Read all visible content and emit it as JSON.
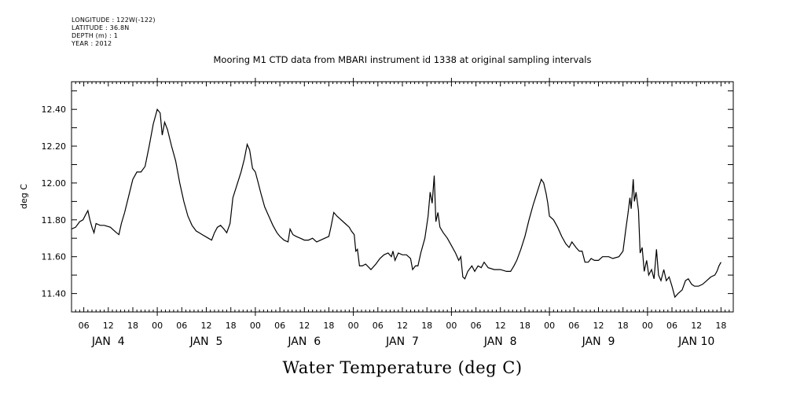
{
  "header_info": [
    "LONGITUDE : 122W(-122)",
    "LATITUDE : 36.8N",
    "DEPTH (m) : 1",
    "YEAR : 2012"
  ],
  "chart_data": {
    "type": "line",
    "title": "Mooring M1 CTD data from MBARI instrument id 1338 at original sampling intervals",
    "xlabel": "Water Temperature (deg C)",
    "ylabel": "deg C",
    "x_unit": "hours since JAN 4 00:00, 2012",
    "xlim": [
      3,
      165
    ],
    "ylim": [
      11.3,
      12.55
    ],
    "yticks": [
      11.4,
      11.6,
      11.8,
      12.0,
      12.2,
      12.4
    ],
    "ytick_labels": [
      "11.40",
      "11.60",
      "11.80",
      "12.00",
      "12.20",
      "12.40"
    ],
    "xticks_hours": [
      6,
      12,
      18,
      24,
      30,
      36,
      42,
      48,
      54,
      60,
      66,
      72,
      78,
      84,
      90,
      96,
      102,
      108,
      114,
      120,
      126,
      132,
      138,
      144,
      150,
      156,
      162
    ],
    "xtick_labels": [
      "06",
      "12",
      "18",
      "00",
      "06",
      "12",
      "18",
      "00",
      "06",
      "12",
      "18",
      "00",
      "06",
      "12",
      "18",
      "00",
      "06",
      "12",
      "18",
      "00",
      "06",
      "12",
      "18",
      "00",
      "06",
      "12",
      "18"
    ],
    "day_labels": [
      {
        "text": "JAN  4",
        "hour": 12
      },
      {
        "text": "JAN  5",
        "hour": 36
      },
      {
        "text": "JAN  6",
        "hour": 60
      },
      {
        "text": "JAN  7",
        "hour": 84
      },
      {
        "text": "JAN  8",
        "hour": 108
      },
      {
        "text": "JAN  9",
        "hour": 132
      },
      {
        "text": "JAN 10",
        "hour": 156
      }
    ],
    "grid": false,
    "series": [
      {
        "color": "#000000",
        "points": [
          [
            3.0,
            11.75
          ],
          [
            4.0,
            11.76
          ],
          [
            5.0,
            11.79
          ],
          [
            5.8,
            11.8
          ],
          [
            6.5,
            11.83
          ],
          [
            7.0,
            11.85
          ],
          [
            7.5,
            11.8
          ],
          [
            8.0,
            11.76
          ],
          [
            8.5,
            11.73
          ],
          [
            9.0,
            11.78
          ],
          [
            10.0,
            11.77
          ],
          [
            11.0,
            11.77
          ],
          [
            12.5,
            11.76
          ],
          [
            14.0,
            11.73
          ],
          [
            14.6,
            11.72
          ],
          [
            15.2,
            11.78
          ],
          [
            16.0,
            11.84
          ],
          [
            17.0,
            11.93
          ],
          [
            18.0,
            12.02
          ],
          [
            19.0,
            12.06
          ],
          [
            20.0,
            12.06
          ],
          [
            21.0,
            12.09
          ],
          [
            22.0,
            12.2
          ],
          [
            23.0,
            12.32
          ],
          [
            24.0,
            12.4
          ],
          [
            24.7,
            12.38
          ],
          [
            25.2,
            12.26
          ],
          [
            25.8,
            12.33
          ],
          [
            26.5,
            12.29
          ],
          [
            27.5,
            12.2
          ],
          [
            28.5,
            12.12
          ],
          [
            29.5,
            12.0
          ],
          [
            30.5,
            11.9
          ],
          [
            31.5,
            11.82
          ],
          [
            32.5,
            11.77
          ],
          [
            33.5,
            11.74
          ],
          [
            35.0,
            11.72
          ],
          [
            36.5,
            11.7
          ],
          [
            37.3,
            11.69
          ],
          [
            38.0,
            11.73
          ],
          [
            38.7,
            11.76
          ],
          [
            39.5,
            11.77
          ],
          [
            40.3,
            11.75
          ],
          [
            41.0,
            11.73
          ],
          [
            41.8,
            11.78
          ],
          [
            42.5,
            11.92
          ],
          [
            43.5,
            11.99
          ],
          [
            44.5,
            12.06
          ],
          [
            45.3,
            12.13
          ],
          [
            46.0,
            12.21
          ],
          [
            46.6,
            12.18
          ],
          [
            47.3,
            12.08
          ],
          [
            48.0,
            12.06
          ],
          [
            48.6,
            12.01
          ],
          [
            49.4,
            11.94
          ],
          [
            50.3,
            11.87
          ],
          [
            51.3,
            11.82
          ],
          [
            52.3,
            11.77
          ],
          [
            53.3,
            11.73
          ],
          [
            54.0,
            11.71
          ],
          [
            55.0,
            11.69
          ],
          [
            56.0,
            11.68
          ],
          [
            56.5,
            11.75
          ],
          [
            57.2,
            11.72
          ],
          [
            58.0,
            11.71
          ],
          [
            59.0,
            11.7
          ],
          [
            60.0,
            11.69
          ],
          [
            61.0,
            11.69
          ],
          [
            62.0,
            11.7
          ],
          [
            63.0,
            11.68
          ],
          [
            64.0,
            11.69
          ],
          [
            65.0,
            11.7
          ],
          [
            66.0,
            11.71
          ],
          [
            66.5,
            11.76
          ],
          [
            67.2,
            11.84
          ],
          [
            68.0,
            11.82
          ],
          [
            70.0,
            11.78
          ],
          [
            71.0,
            11.76
          ],
          [
            71.5,
            11.74
          ],
          [
            72.2,
            11.72
          ],
          [
            72.6,
            11.63
          ],
          [
            73.0,
            11.64
          ],
          [
            73.5,
            11.55
          ],
          [
            74.2,
            11.55
          ],
          [
            75.0,
            11.56
          ],
          [
            76.3,
            11.53
          ],
          [
            77.5,
            11.56
          ],
          [
            78.5,
            11.59
          ],
          [
            79.5,
            11.61
          ],
          [
            80.5,
            11.62
          ],
          [
            81.3,
            11.6
          ],
          [
            81.7,
            11.63
          ],
          [
            82.2,
            11.58
          ],
          [
            83.0,
            11.62
          ],
          [
            84.0,
            11.61
          ],
          [
            85.0,
            11.61
          ],
          [
            86.0,
            11.59
          ],
          [
            86.5,
            11.53
          ],
          [
            87.2,
            11.55
          ],
          [
            87.8,
            11.55
          ],
          [
            88.5,
            11.62
          ],
          [
            89.5,
            11.7
          ],
          [
            90.3,
            11.82
          ],
          [
            90.8,
            11.95
          ],
          [
            91.3,
            11.89
          ],
          [
            91.8,
            12.04
          ],
          [
            92.2,
            11.79
          ],
          [
            92.7,
            11.84
          ],
          [
            93.2,
            11.76
          ],
          [
            94.0,
            11.73
          ],
          [
            95.0,
            11.7
          ],
          [
            96.0,
            11.66
          ],
          [
            97.0,
            11.62
          ],
          [
            97.8,
            11.58
          ],
          [
            98.3,
            11.6
          ],
          [
            98.8,
            11.49
          ],
          [
            99.3,
            11.48
          ],
          [
            100.0,
            11.52
          ],
          [
            101.0,
            11.55
          ],
          [
            101.7,
            11.52
          ],
          [
            102.5,
            11.55
          ],
          [
            103.3,
            11.54
          ],
          [
            104.0,
            11.57
          ],
          [
            105.0,
            11.54
          ],
          [
            106.5,
            11.53
          ],
          [
            108.0,
            11.53
          ],
          [
            109.5,
            11.52
          ],
          [
            110.5,
            11.52
          ],
          [
            111.3,
            11.55
          ],
          [
            112.0,
            11.58
          ],
          [
            113.0,
            11.64
          ],
          [
            114.0,
            11.71
          ],
          [
            115.0,
            11.8
          ],
          [
            116.0,
            11.88
          ],
          [
            117.0,
            11.95
          ],
          [
            118.0,
            12.02
          ],
          [
            118.6,
            12.0
          ],
          [
            119.2,
            11.94
          ],
          [
            119.6,
            11.89
          ],
          [
            120.0,
            11.82
          ],
          [
            121.0,
            11.8
          ],
          [
            122.0,
            11.76
          ],
          [
            123.0,
            11.71
          ],
          [
            124.0,
            11.67
          ],
          [
            124.8,
            11.65
          ],
          [
            125.5,
            11.68
          ],
          [
            126.5,
            11.65
          ],
          [
            127.3,
            11.63
          ],
          [
            128.0,
            11.63
          ],
          [
            128.7,
            11.57
          ],
          [
            129.5,
            11.57
          ],
          [
            130.2,
            11.59
          ],
          [
            131.0,
            11.58
          ],
          [
            132.0,
            11.58
          ],
          [
            133.0,
            11.6
          ],
          [
            134.5,
            11.6
          ],
          [
            135.5,
            11.59
          ],
          [
            137.0,
            11.6
          ],
          [
            138.0,
            11.63
          ],
          [
            138.7,
            11.75
          ],
          [
            139.2,
            11.83
          ],
          [
            139.7,
            11.92
          ],
          [
            140.0,
            11.86
          ],
          [
            140.5,
            12.02
          ],
          [
            140.8,
            11.9
          ],
          [
            141.2,
            11.95
          ],
          [
            141.8,
            11.85
          ],
          [
            142.2,
            11.62
          ],
          [
            142.7,
            11.65
          ],
          [
            143.2,
            11.52
          ],
          [
            143.8,
            11.58
          ],
          [
            144.3,
            11.5
          ],
          [
            145.0,
            11.53
          ],
          [
            145.6,
            11.48
          ],
          [
            146.2,
            11.64
          ],
          [
            146.7,
            11.5
          ],
          [
            147.3,
            11.47
          ],
          [
            148.0,
            11.53
          ],
          [
            148.6,
            11.47
          ],
          [
            149.3,
            11.49
          ],
          [
            150.0,
            11.44
          ],
          [
            150.7,
            11.38
          ],
          [
            151.5,
            11.4
          ],
          [
            152.5,
            11.42
          ],
          [
            153.3,
            11.47
          ],
          [
            154.0,
            11.48
          ],
          [
            154.8,
            11.45
          ],
          [
            155.5,
            11.44
          ],
          [
            156.5,
            11.44
          ],
          [
            157.5,
            11.45
          ],
          [
            158.5,
            11.47
          ],
          [
            159.5,
            11.49
          ],
          [
            160.5,
            11.5
          ],
          [
            161.0,
            11.52
          ],
          [
            161.5,
            11.55
          ],
          [
            162.0,
            11.57
          ]
        ]
      }
    ]
  }
}
